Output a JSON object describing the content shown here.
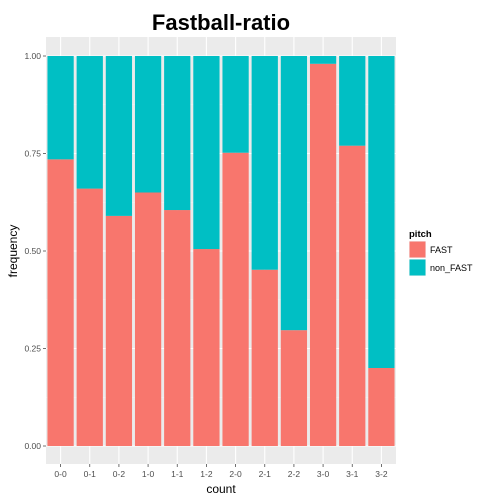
{
  "chart_data": {
    "type": "bar",
    "stacked": true,
    "title": "Fastball-ratio",
    "xlabel": "count",
    "ylabel": "frequency",
    "ylim": [
      0,
      1
    ],
    "yticks": [
      "0.00",
      "0.25",
      "0.50",
      "0.75",
      "1.00"
    ],
    "categories": [
      "0-0",
      "0-1",
      "0-2",
      "1-0",
      "1-1",
      "1-2",
      "2-0",
      "2-1",
      "2-2",
      "3-0",
      "3-1",
      "3-2"
    ],
    "series": [
      {
        "name": "FAST",
        "color": "#F8766D",
        "values": [
          0.735,
          0.66,
          0.59,
          0.65,
          0.605,
          0.505,
          0.752,
          0.452,
          0.297,
          0.98,
          0.77,
          0.2
        ]
      },
      {
        "name": "non_FAST",
        "color": "#00BFC4",
        "values": [
          0.265,
          0.34,
          0.41,
          0.35,
          0.395,
          0.495,
          0.248,
          0.548,
          0.703,
          0.02,
          0.23,
          0.8
        ]
      }
    ],
    "legend": {
      "title": "pitch",
      "position": "right"
    },
    "grid": true
  }
}
